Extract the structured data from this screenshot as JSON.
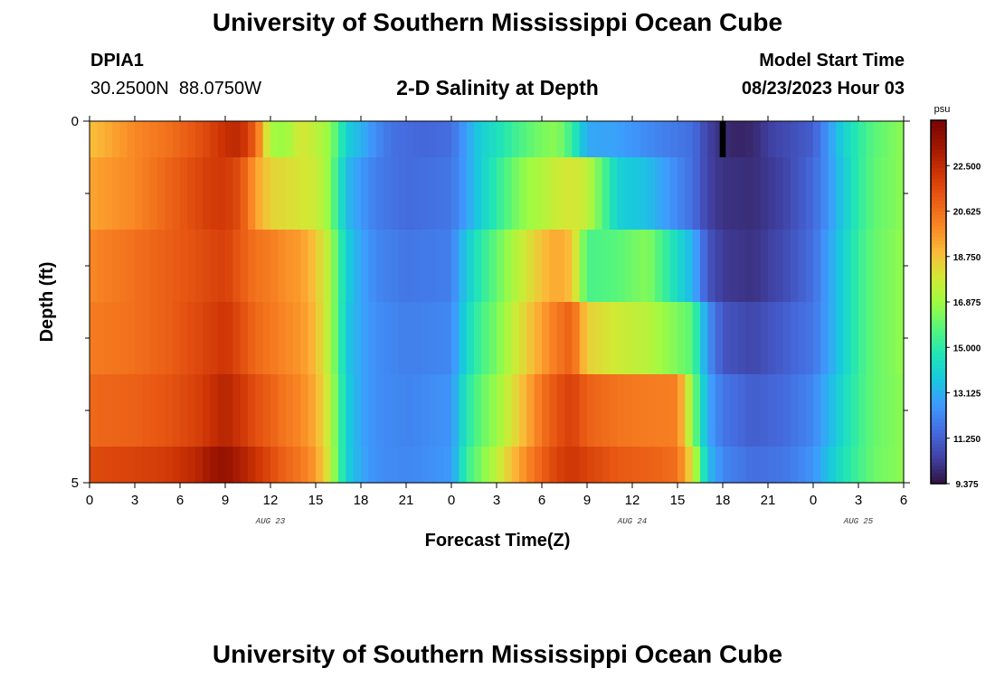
{
  "header": {
    "title": "University of Southern Mississippi Ocean Cube",
    "footer_title": "University of Southern Mississippi Ocean Cube",
    "station_id": "DPIA1",
    "station_location": "30.2500N  88.0750W",
    "subtitle": "2-D Salinity at Depth",
    "model_start_label": "Model Start Time",
    "model_start_value": "08/23/2023 Hour 03"
  },
  "chart_data": {
    "type": "heatmap",
    "title": "2-D Salinity at Depth",
    "xlabel": "Forecast Time(Z)",
    "ylabel": "Depth (ft)",
    "x_hours_since_start": [
      0,
      54
    ],
    "x_tick_labels": [
      "0",
      "3",
      "6",
      "9",
      "12",
      "15",
      "18",
      "21",
      "0",
      "3",
      "6",
      "9",
      "12",
      "15",
      "18",
      "21",
      "0",
      "3",
      "6"
    ],
    "date_labels": [
      {
        "label": "AUG 23",
        "hour": 12
      },
      {
        "label": "AUG 24",
        "hour": 36
      },
      {
        "label": "AUG 25",
        "hour": 51
      }
    ],
    "y_range": [
      0,
      5
    ],
    "y_tick_labels": [
      "0",
      "5"
    ],
    "y_minor_ticks": [
      1,
      2,
      3,
      4
    ],
    "colorbar": {
      "unit": "psu",
      "range": [
        9.375,
        24.375
      ],
      "tick_labels": [
        "22.500",
        "20.625",
        "18.750",
        "16.875",
        "15.000",
        "13.125",
        "11.250",
        "9.375"
      ],
      "tick_values": [
        22.5,
        20.625,
        18.75,
        16.875,
        15.0,
        13.125,
        11.25,
        9.375
      ]
    },
    "depth_layers": [
      {
        "depth_top": 0.0,
        "depth_bottom": 0.5,
        "profile": [
          [
            0,
            18.8
          ],
          [
            1.5,
            19.4
          ],
          [
            3,
            20.0
          ],
          [
            5,
            20.5
          ],
          [
            7,
            21.3
          ],
          [
            8,
            21.8
          ],
          [
            9,
            22.4
          ],
          [
            10,
            22.6
          ],
          [
            11,
            21.0
          ],
          [
            12,
            17.0
          ],
          [
            13,
            16.8
          ],
          [
            14,
            18.0
          ],
          [
            15,
            17.5
          ],
          [
            15.8,
            16.8
          ],
          [
            16.5,
            15.5
          ],
          [
            17,
            14.0
          ],
          [
            18,
            13.2
          ],
          [
            19,
            12.3
          ],
          [
            20,
            11.7
          ],
          [
            22,
            11.4
          ],
          [
            24,
            11.6
          ],
          [
            25,
            12.8
          ],
          [
            26,
            14.0
          ],
          [
            27,
            14.5
          ],
          [
            28,
            15.2
          ],
          [
            29,
            15.8
          ],
          [
            30,
            16.3
          ],
          [
            31,
            16.6
          ],
          [
            32,
            15.2
          ],
          [
            33,
            13.0
          ],
          [
            35,
            12.8
          ],
          [
            37,
            12.3
          ],
          [
            40,
            11.6
          ],
          [
            41,
            10.5
          ],
          [
            42,
            10.0
          ],
          [
            43,
            9.8
          ],
          [
            44,
            9.9
          ],
          [
            45,
            10.4
          ],
          [
            48,
            11.2
          ],
          [
            49,
            12.6
          ],
          [
            50,
            14.0
          ],
          [
            51,
            15.0
          ],
          [
            52,
            15.8
          ],
          [
            54,
            16.6
          ]
        ]
      },
      {
        "depth_top": 0.5,
        "depth_bottom": 1.5,
        "profile": [
          [
            0,
            19.4
          ],
          [
            3,
            20.0
          ],
          [
            5,
            20.8
          ],
          [
            7,
            21.6
          ],
          [
            8,
            22.0
          ],
          [
            9,
            22.1
          ],
          [
            10,
            21.5
          ],
          [
            11,
            19.5
          ],
          [
            12,
            18.4
          ],
          [
            13,
            18.2
          ],
          [
            14,
            18.0
          ],
          [
            15,
            17.8
          ],
          [
            15.8,
            16.8
          ],
          [
            16.5,
            15.0
          ],
          [
            17,
            13.5
          ],
          [
            18,
            12.6
          ],
          [
            19,
            12.0
          ],
          [
            21,
            11.5
          ],
          [
            24,
            11.8
          ],
          [
            25,
            12.8
          ],
          [
            26,
            14.0
          ],
          [
            27,
            15.0
          ],
          [
            28,
            16.0
          ],
          [
            29,
            16.8
          ],
          [
            30,
            17.2
          ],
          [
            31,
            17.8
          ],
          [
            32,
            18.0
          ],
          [
            33,
            17.6
          ],
          [
            35,
            14.0
          ],
          [
            37,
            13.5
          ],
          [
            40,
            11.6
          ],
          [
            41,
            10.5
          ],
          [
            42,
            10.1
          ],
          [
            44,
            10.0
          ],
          [
            46,
            10.5
          ],
          [
            48,
            11.5
          ],
          [
            49,
            12.5
          ],
          [
            50,
            13.8
          ],
          [
            51,
            15.0
          ],
          [
            52,
            15.9
          ],
          [
            54,
            16.6
          ]
        ]
      },
      {
        "depth_top": 1.5,
        "depth_bottom": 2.5,
        "profile": [
          [
            0,
            20.0
          ],
          [
            3,
            20.6
          ],
          [
            5,
            21.0
          ],
          [
            7,
            21.4
          ],
          [
            8,
            21.7
          ],
          [
            9,
            21.9
          ],
          [
            10,
            21.2
          ],
          [
            11,
            20.5
          ],
          [
            12,
            20.3
          ],
          [
            13,
            19.8
          ],
          [
            14,
            19.6
          ],
          [
            15,
            18.7
          ],
          [
            15.8,
            17.5
          ],
          [
            16.5,
            15.6
          ],
          [
            17,
            14.0
          ],
          [
            18,
            12.9
          ],
          [
            19,
            12.2
          ],
          [
            21,
            11.8
          ],
          [
            24,
            12.0
          ],
          [
            25,
            13.8
          ],
          [
            26,
            15.0
          ],
          [
            27,
            16.0
          ],
          [
            28,
            17.0
          ],
          [
            29,
            18.0
          ],
          [
            30,
            18.8
          ],
          [
            31,
            19.4
          ],
          [
            32,
            18.8
          ],
          [
            33,
            15.5
          ],
          [
            35,
            15.8
          ],
          [
            37,
            16.5
          ],
          [
            40,
            13.2
          ],
          [
            41,
            11.0
          ],
          [
            42,
            10.3
          ],
          [
            44,
            10.1
          ],
          [
            46,
            10.7
          ],
          [
            48,
            11.6
          ],
          [
            49,
            12.8
          ],
          [
            50,
            14.0
          ],
          [
            51,
            15.2
          ],
          [
            52,
            16.0
          ],
          [
            54,
            16.7
          ]
        ]
      },
      {
        "depth_top": 2.5,
        "depth_bottom": 3.5,
        "profile": [
          [
            0,
            20.3
          ],
          [
            3,
            20.6
          ],
          [
            5,
            21.0
          ],
          [
            7,
            21.6
          ],
          [
            8,
            21.9
          ],
          [
            9,
            22.2
          ],
          [
            10,
            21.6
          ],
          [
            11,
            20.8
          ],
          [
            12,
            20.4
          ],
          [
            13,
            20.0
          ],
          [
            14,
            19.7
          ],
          [
            15,
            18.9
          ],
          [
            15.8,
            17.5
          ],
          [
            16.5,
            15.6
          ],
          [
            17,
            13.8
          ],
          [
            18,
            12.9
          ],
          [
            19,
            12.4
          ],
          [
            21,
            12.0
          ],
          [
            24,
            12.2
          ],
          [
            25,
            14.2
          ],
          [
            26,
            15.5
          ],
          [
            27,
            16.3
          ],
          [
            28,
            17.5
          ],
          [
            29,
            18.5
          ],
          [
            30,
            19.5
          ],
          [
            31,
            20.4
          ],
          [
            32,
            21.0
          ],
          [
            33,
            18.5
          ],
          [
            35,
            17.8
          ],
          [
            37,
            17.4
          ],
          [
            40,
            15.8
          ],
          [
            41,
            12.5
          ],
          [
            42,
            11.0
          ],
          [
            44,
            10.6
          ],
          [
            46,
            11.2
          ],
          [
            48,
            11.8
          ],
          [
            49,
            12.8
          ],
          [
            50,
            14.0
          ],
          [
            51,
            15.2
          ],
          [
            52,
            16.0
          ],
          [
            54,
            16.7
          ]
        ]
      },
      {
        "depth_top": 3.5,
        "depth_bottom": 4.5,
        "profile": [
          [
            0,
            20.8
          ],
          [
            3,
            21.0
          ],
          [
            5,
            21.3
          ],
          [
            7,
            21.8
          ],
          [
            8,
            22.3
          ],
          [
            9,
            22.8
          ],
          [
            10,
            22.2
          ],
          [
            11,
            21.5
          ],
          [
            12,
            21.0
          ],
          [
            13,
            20.4
          ],
          [
            14,
            20.0
          ],
          [
            15,
            19.2
          ],
          [
            15.8,
            17.8
          ],
          [
            16.5,
            15.8
          ],
          [
            17,
            14.0
          ],
          [
            18,
            12.9
          ],
          [
            19,
            12.4
          ],
          [
            21,
            12.1
          ],
          [
            24,
            12.5
          ],
          [
            25,
            14.8
          ],
          [
            26,
            16.0
          ],
          [
            27,
            16.8
          ],
          [
            28,
            18.0
          ],
          [
            29,
            19.2
          ],
          [
            30,
            20.5
          ],
          [
            31,
            21.4
          ],
          [
            32,
            21.9
          ],
          [
            33,
            21.0
          ],
          [
            35,
            20.5
          ],
          [
            37,
            20.3
          ],
          [
            39,
            20.2
          ],
          [
            40,
            16.6
          ],
          [
            41,
            13.0
          ],
          [
            42,
            11.8
          ],
          [
            44,
            11.2
          ],
          [
            46,
            11.5
          ],
          [
            48,
            12.2
          ],
          [
            49,
            13.2
          ],
          [
            50,
            14.3
          ],
          [
            51,
            15.3
          ],
          [
            52,
            16.0
          ],
          [
            54,
            16.6
          ]
        ]
      },
      {
        "depth_top": 4.5,
        "depth_bottom": 5.0,
        "profile": [
          [
            0,
            21.6
          ],
          [
            3,
            21.8
          ],
          [
            5,
            22.0
          ],
          [
            7,
            22.6
          ],
          [
            8,
            23.3
          ],
          [
            9,
            23.6
          ],
          [
            10,
            23.0
          ],
          [
            11,
            22.3
          ],
          [
            12,
            21.6
          ],
          [
            13,
            20.9
          ],
          [
            14,
            20.4
          ],
          [
            15,
            19.6
          ],
          [
            15.8,
            18.0
          ],
          [
            16.5,
            15.8
          ],
          [
            17,
            14.0
          ],
          [
            18,
            13.0
          ],
          [
            19,
            12.4
          ],
          [
            21,
            12.2
          ],
          [
            24,
            12.6
          ],
          [
            25,
            15.2
          ],
          [
            26,
            16.4
          ],
          [
            27,
            17.5
          ],
          [
            28,
            18.8
          ],
          [
            29,
            20.0
          ],
          [
            30,
            21.0
          ],
          [
            31,
            21.8
          ],
          [
            32,
            22.2
          ],
          [
            33,
            21.8
          ],
          [
            35,
            21.2
          ],
          [
            37,
            21.0
          ],
          [
            39,
            20.6
          ],
          [
            40,
            18.0
          ],
          [
            41,
            13.5
          ],
          [
            42,
            12.2
          ],
          [
            44,
            11.6
          ],
          [
            46,
            11.8
          ],
          [
            48,
            12.5
          ],
          [
            49,
            13.6
          ],
          [
            50,
            14.6
          ],
          [
            51,
            15.4
          ],
          [
            52,
            16.1
          ],
          [
            54,
            16.6
          ]
        ]
      }
    ],
    "anomaly": {
      "hour_start": 41.8,
      "hour_end": 42.2,
      "depth_top": 0.0,
      "depth_bottom": 0.5,
      "color": "#000000"
    }
  }
}
